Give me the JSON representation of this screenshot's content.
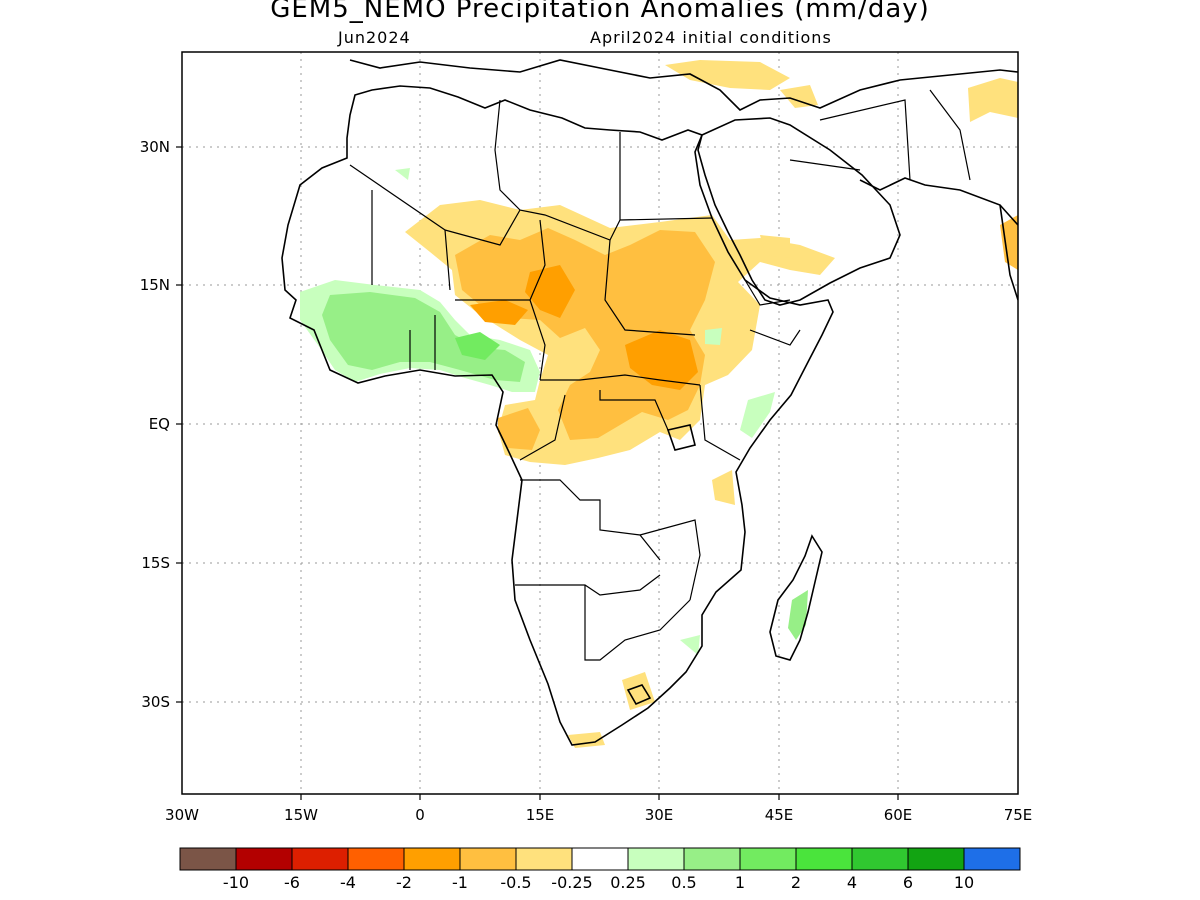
{
  "header": {
    "title": "GEM5_NEMO Precipitation Anomalies (mm/day)",
    "month": "Jun2024",
    "init": "April2024 initial conditions"
  },
  "map": {
    "region": "Africa and Arabian Peninsula",
    "lon_range": [
      -30,
      75
    ],
    "lat_range": [
      -40,
      42
    ],
    "grid": "dotted",
    "x_ticks": [
      "30W",
      "15W",
      "0",
      "15E",
      "30E",
      "45E",
      "60E",
      "75E"
    ],
    "y_ticks": [
      "30N",
      "15N",
      "EQ",
      "15S",
      "30S"
    ]
  },
  "colorbar": {
    "colors": [
      "#7b5547",
      "#b30000",
      "#dd1f00",
      "#ff6000",
      "#ff9f00",
      "#ffbf40",
      "#ffe17d",
      "#ffffff",
      "#c8ffbe",
      "#97ef87",
      "#72eb60",
      "#4ae43c",
      "#30c830",
      "#12a412",
      "#1e6fe8"
    ],
    "labels": [
      "-10",
      "-6",
      "-4",
      "-2",
      "-1",
      "-0.5",
      "-0.25",
      "0.25",
      "0.5",
      "1",
      "2",
      "4",
      "6",
      "10"
    ]
  }
}
